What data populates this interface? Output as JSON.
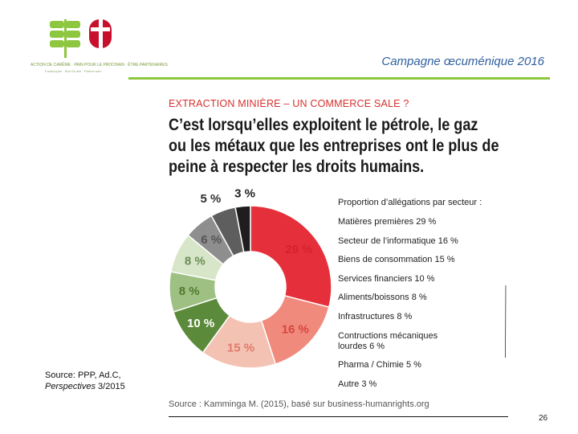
{
  "header": {
    "campaign_title": "Campagne œcuménique 2016",
    "logo_text": "ACTION DE CARÊME · PAIN POUR LE PROCHAIN · ÊTRE PARTENAIRES",
    "logo_subtext": "Fastenopfer · Brot für alle · Partner sein"
  },
  "chart_data": {
    "type": "pie",
    "kicker": "EXTRACTION MINIÈRE – UN COMMERCE SALE ?",
    "title": "C’est lorsqu’elles exploitent le pétrole, le gaz ou les métaux que les entreprises ont le plus de peine à respecter les droits humains.",
    "title_lines": [
      "C’est lorsqu’elles exploitent le pétrole, le gaz",
      "ou les métaux que les entreprises ont le plus de",
      "peine à respecter les droits humains."
    ],
    "legend_title": "Proportion d’allégations par secteur :",
    "legend_position": "right",
    "unit": "%",
    "slices": [
      {
        "name": "Matières premières",
        "value": 29,
        "label": "29 %",
        "color": "#e5303b",
        "label_color": "#d8202a"
      },
      {
        "name": "Secteur de l’informatique",
        "value": 16,
        "label": "16 %",
        "color": "#ef8a7c",
        "label_color": "#d8453f"
      },
      {
        "name": "Biens de consommation",
        "value": 15,
        "label": "15 %",
        "color": "#f4c2b2",
        "label_color": "#e07a6a"
      },
      {
        "name": "Services financiers",
        "value": 10,
        "label": "10 %",
        "color": "#5b8b3a",
        "label_color": "#ffffff"
      },
      {
        "name": "Aliments/boissons",
        "value": 8,
        "label": "8 %",
        "color": "#9fc083",
        "label_color": "#4f7a2e"
      },
      {
        "name": "Infrastructures",
        "value": 8,
        "label": "8 %",
        "color": "#d7e6c8",
        "label_color": "#6b8c55"
      },
      {
        "name": "Contructions mécaniques lourdes",
        "value": 6,
        "label": "6 %",
        "color": "#8e8e8e",
        "label_color": "#555555"
      },
      {
        "name": "Pharma / Chimie",
        "value": 5,
        "label": "5 %",
        "color": "#5e5e5e",
        "label_color": "#333333"
      },
      {
        "name": "Autre",
        "value": 3,
        "label": "3 %",
        "color": "#1e1e1e",
        "label_color": "#222222"
      }
    ],
    "legend_entries": [
      "Matières premières 29 %",
      "Secteur de l’informatique 16 %",
      "Biens de consommation 15 %",
      "Services financiers 10 %",
      "Aliments/boissons 8 %",
      "Infrastructures 8 %",
      "Contructions mécaniques lourdes 6 %",
      "Pharma / Chimie 5 %",
      "Autre 3 %"
    ],
    "legend_lines": [
      [
        "Matières premières 29 %"
      ],
      [
        "Secteur de l’informatique 16 %"
      ],
      [
        "Biens de consommation 15 %"
      ],
      [
        "Services financiers 10 %"
      ],
      [
        "Aliments/boissons 8 %"
      ],
      [
        "Infrastructures 8 %"
      ],
      [
        "Contructions mécaniques",
        "lourdes 6 %"
      ],
      [
        "Pharma / Chimie 5 %"
      ],
      [
        "Autre 3 %"
      ]
    ],
    "source": "Source : Kamminga M. (2015), basé sur business-humanrights.org"
  },
  "footer": {
    "source_left_line1": "Source: PPP, Ad.C,",
    "source_left_italic": "Perspectives",
    "source_left_rest": " 3/2015",
    "page_number": "26"
  }
}
